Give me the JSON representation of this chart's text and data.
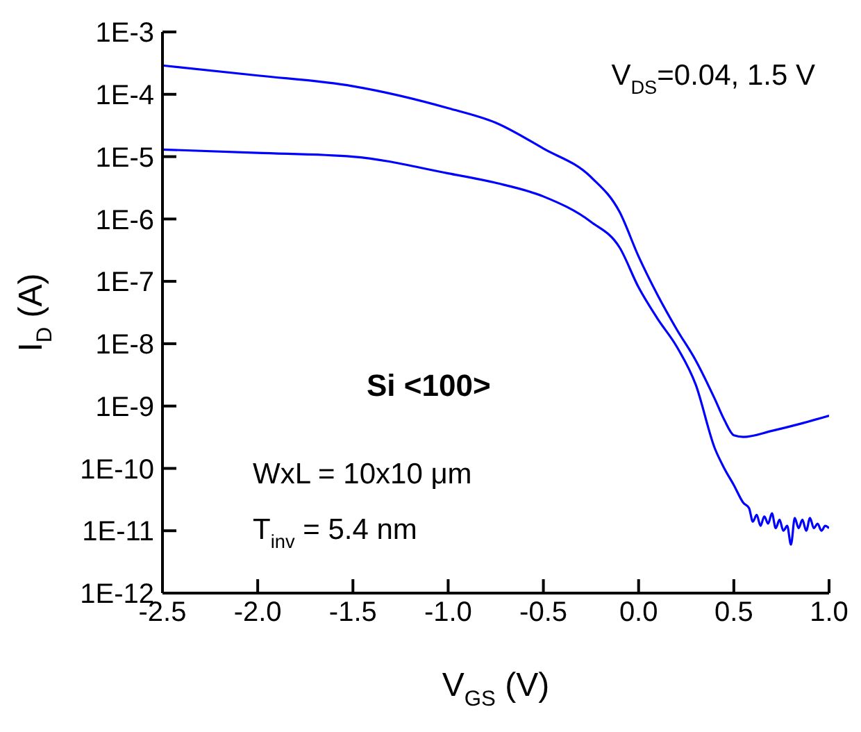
{
  "chart_data": {
    "type": "line",
    "xlabel": "V$_{GS}$ (V)",
    "ylabel": "I$_{D}$ (A)",
    "annotations": [
      "V$_{DS}$=0.04, 1.5 V",
      "Si <100>",
      "WxL = 10x10 μm",
      "T$_{inv}$ = 5.4 nm"
    ],
    "log": "y",
    "marker": "none",
    "line_style": "solid",
    "xlim": [
      -2.5,
      1.0
    ],
    "ylim": [
      1e-12,
      0.001
    ],
    "xticks": [
      {
        "value": -2.5,
        "label": "-2.5"
      },
      {
        "value": -2,
        "label": "-2.0"
      },
      {
        "value": -1.5,
        "label": "-1.5"
      },
      {
        "value": -1,
        "label": "-1.0"
      },
      {
        "value": -0.5,
        "label": "-0.5"
      },
      {
        "value": 0,
        "label": "0.0"
      },
      {
        "value": 0.5,
        "label": "0.5"
      },
      {
        "value": 1,
        "label": "1.0"
      }
    ],
    "yticks": [
      {
        "value": 1e-12,
        "label": "1E-12"
      },
      {
        "value": 1e-11,
        "label": "1E-11"
      },
      {
        "value": 1e-10,
        "label": "1E-10"
      },
      {
        "value": 1e-09,
        "label": "1E-9"
      },
      {
        "value": 1e-08,
        "label": "1E-8"
      },
      {
        "value": 1e-07,
        "label": "1E-7"
      },
      {
        "value": 1e-06,
        "label": "1E-6"
      },
      {
        "value": 1e-05,
        "label": "1E-5"
      },
      {
        "value": 0.0001,
        "label": "1E-4"
      },
      {
        "value": 0.001,
        "label": "1E-3"
      }
    ],
    "series": [
      {
        "color": "#0000ff",
        "x": [
          -2.5,
          -2,
          -1.5,
          -1,
          -0.75,
          -0.5,
          -0.25,
          -0.1,
          0,
          0.1,
          0.2,
          0.3,
          0.4,
          0.45,
          0.5,
          0.55,
          0.7,
          0.85,
          1.0
        ],
        "values": [
          0.00029,
          0.0002,
          0.000135,
          6e-05,
          3.5e-05,
          1.35e-05,
          4.7e-06,
          1.3e-06,
          2.5e-07,
          6e-08,
          1.7e-08,
          5.4e-09,
          1.3e-09,
          6e-10,
          3.4e-10,
          3.2e-10,
          4e-10,
          5.2e-10,
          7e-10
        ]
      },
      {
        "color": "#0000ff",
        "x": [
          -2.5,
          -2,
          -1.5,
          -1,
          -0.75,
          -0.5,
          -0.25,
          -0.1,
          0,
          0.1,
          0.2,
          0.3,
          0.4,
          0.45,
          0.5,
          0.55,
          0.58,
          0.6,
          0.62,
          0.64,
          0.66,
          0.68,
          0.7,
          0.72,
          0.74,
          0.76,
          0.78,
          0.8,
          0.82,
          0.84,
          0.86,
          0.88,
          0.9,
          0.92,
          0.94,
          0.96,
          0.98,
          1.0
        ],
        "values": [
          1.3e-05,
          1.15e-05,
          1e-05,
          5.4e-06,
          3.8e-06,
          2.3e-06,
          9e-07,
          3.5e-07,
          8e-08,
          2.5e-08,
          9e-09,
          2.2e-09,
          2.1e-10,
          1e-10,
          5.4e-11,
          2.8e-11,
          2.3e-11,
          1.4e-11,
          1.8e-11,
          1.2e-11,
          1.7e-11,
          1.3e-11,
          1.9e-11,
          1.1e-11,
          1.5e-11,
          1e-11,
          1.2e-11,
          6e-12,
          1.6e-11,
          1.1e-11,
          1.5e-11,
          1e-11,
          1.6e-11,
          1.1e-11,
          1.3e-11,
          1e-11,
          1.2e-11,
          1.1e-11
        ]
      }
    ]
  }
}
